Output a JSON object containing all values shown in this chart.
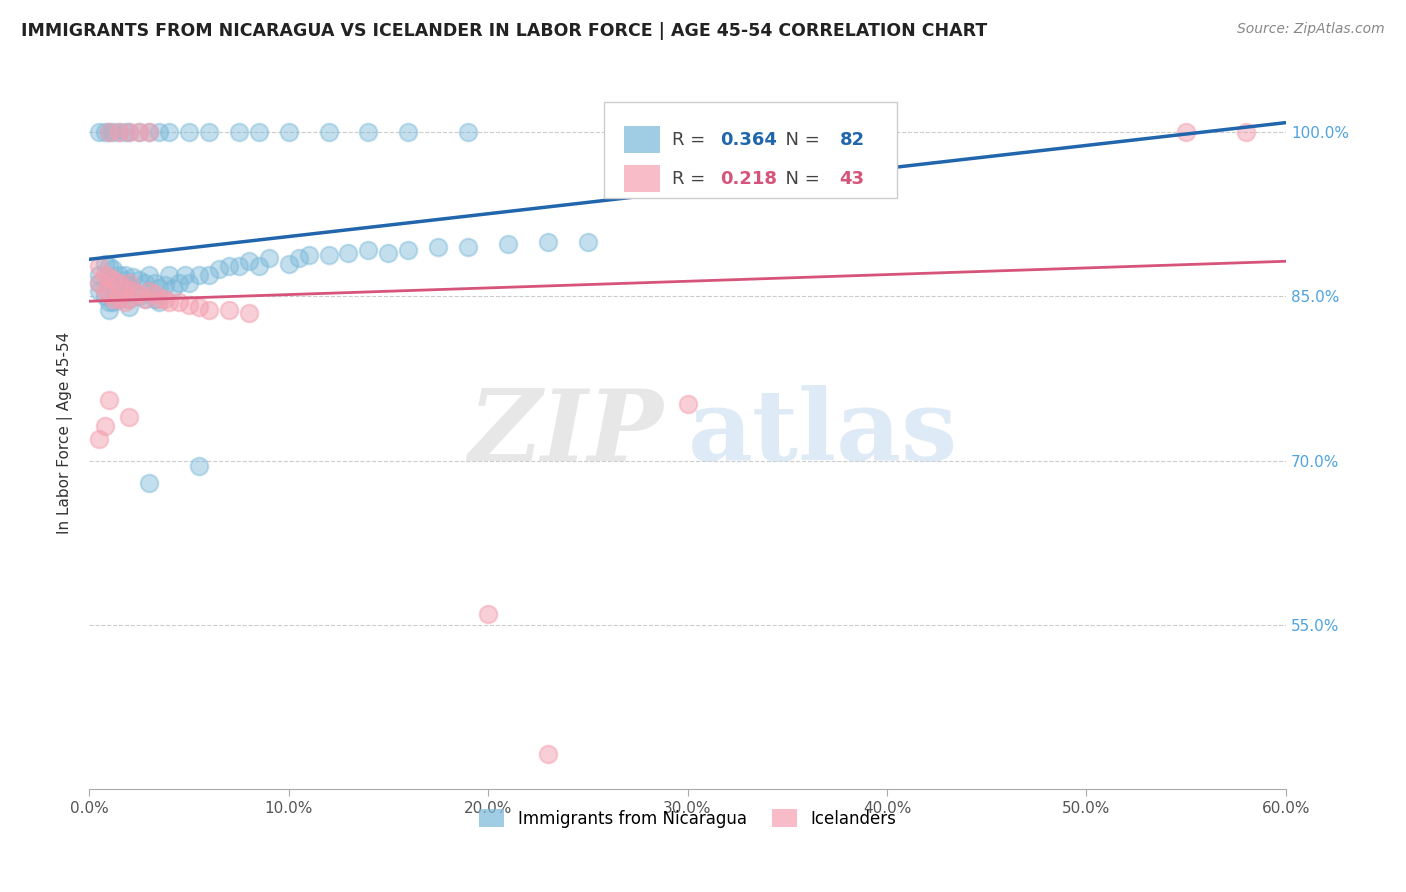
{
  "title": "IMMIGRANTS FROM NICARAGUA VS ICELANDER IN LABOR FORCE | AGE 45-54 CORRELATION CHART",
  "source": "Source: ZipAtlas.com",
  "ylabel": "In Labor Force | Age 45-54",
  "xlim": [
    0.0,
    0.6
  ],
  "ylim": [
    0.4,
    1.05
  ],
  "ytick_vals": [
    0.55,
    0.7,
    0.85,
    1.0
  ],
  "ytick_labels": [
    "55.0%",
    "70.0%",
    "85.0%",
    "100.0%"
  ],
  "xtick_vals": [
    0.0,
    0.1,
    0.2,
    0.3,
    0.4,
    0.5,
    0.6
  ],
  "xtick_labels": [
    "0.0%",
    "10.0%",
    "20.0%",
    "30.0%",
    "40.0%",
    "50.0%",
    "60.0%"
  ],
  "r_blue": 0.364,
  "n_blue": 82,
  "r_pink": 0.218,
  "n_pink": 43,
  "blue_color": "#7ab8d9",
  "pink_color": "#f4a0b0",
  "line_blue": "#2166ac",
  "line_pink": "#d6547a",
  "legend_blue_label": "Immigrants from Nicaragua",
  "legend_pink_label": "Icelanders",
  "blue_x": [
    0.005,
    0.005,
    0.005,
    0.008,
    0.008,
    0.01,
    0.01,
    0.01,
    0.01,
    0.012,
    0.012,
    0.012,
    0.015,
    0.015,
    0.015,
    0.018,
    0.018,
    0.018,
    0.02,
    0.02,
    0.02,
    0.022,
    0.022,
    0.025,
    0.025,
    0.028,
    0.028,
    0.03,
    0.03,
    0.033,
    0.033,
    0.035,
    0.035,
    0.038,
    0.04,
    0.042,
    0.045,
    0.048,
    0.05,
    0.055,
    0.06,
    0.065,
    0.07,
    0.075,
    0.08,
    0.085,
    0.09,
    0.1,
    0.105,
    0.11,
    0.12,
    0.13,
    0.14,
    0.15,
    0.16,
    0.175,
    0.19,
    0.21,
    0.23,
    0.25,
    0.005,
    0.008,
    0.01,
    0.012,
    0.015,
    0.018,
    0.02,
    0.025,
    0.03,
    0.035,
    0.04,
    0.05,
    0.06,
    0.075,
    0.085,
    0.1,
    0.12,
    0.14,
    0.16,
    0.19,
    0.03,
    0.055
  ],
  "blue_y": [
    0.87,
    0.855,
    0.862,
    0.88,
    0.85,
    0.878,
    0.862,
    0.845,
    0.838,
    0.875,
    0.858,
    0.845,
    0.87,
    0.858,
    0.848,
    0.865,
    0.852,
    0.87,
    0.86,
    0.848,
    0.84,
    0.868,
    0.855,
    0.865,
    0.85,
    0.862,
    0.848,
    0.87,
    0.855,
    0.862,
    0.848,
    0.858,
    0.845,
    0.86,
    0.87,
    0.858,
    0.862,
    0.87,
    0.862,
    0.87,
    0.87,
    0.875,
    0.878,
    0.878,
    0.882,
    0.878,
    0.885,
    0.88,
    0.885,
    0.888,
    0.888,
    0.89,
    0.892,
    0.89,
    0.892,
    0.895,
    0.895,
    0.898,
    0.9,
    0.9,
    1.0,
    1.0,
    1.0,
    1.0,
    1.0,
    1.0,
    1.0,
    1.0,
    1.0,
    1.0,
    1.0,
    1.0,
    1.0,
    1.0,
    1.0,
    1.0,
    1.0,
    1.0,
    1.0,
    1.0,
    0.68,
    0.695
  ],
  "pink_x": [
    0.005,
    0.005,
    0.008,
    0.008,
    0.01,
    0.01,
    0.012,
    0.012,
    0.015,
    0.015,
    0.018,
    0.018,
    0.02,
    0.02,
    0.022,
    0.025,
    0.028,
    0.03,
    0.033,
    0.035,
    0.038,
    0.04,
    0.045,
    0.05,
    0.055,
    0.06,
    0.07,
    0.08,
    0.01,
    0.015,
    0.02,
    0.025,
    0.03,
    0.35,
    0.55,
    0.58,
    0.005,
    0.008,
    0.01,
    0.02,
    0.3,
    0.2,
    0.23
  ],
  "pink_y": [
    0.878,
    0.862,
    0.87,
    0.855,
    0.868,
    0.852,
    0.865,
    0.848,
    0.862,
    0.848,
    0.858,
    0.845,
    0.862,
    0.848,
    0.855,
    0.852,
    0.848,
    0.855,
    0.852,
    0.848,
    0.848,
    0.845,
    0.845,
    0.842,
    0.84,
    0.838,
    0.838,
    0.835,
    1.0,
    1.0,
    1.0,
    1.0,
    1.0,
    1.0,
    1.0,
    1.0,
    0.72,
    0.732,
    0.755,
    0.74,
    0.752,
    0.56,
    0.432
  ],
  "watermark_zip": "ZIP",
  "watermark_atlas": "atlas",
  "background_color": "#ffffff",
  "grid_color": "#cccccc"
}
